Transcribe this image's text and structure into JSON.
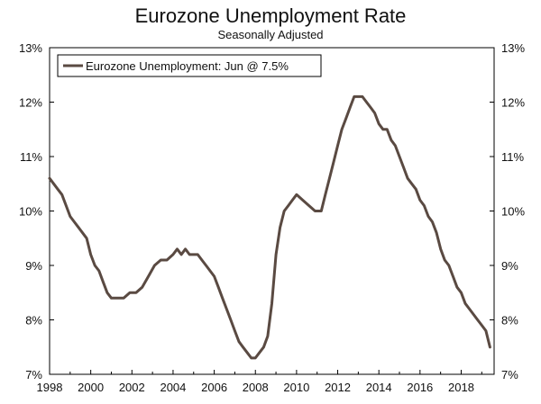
{
  "chart_data": {
    "type": "line",
    "title": "Eurozone Unemployment Rate",
    "subtitle": "Seasonally Adjusted",
    "xlabel": "",
    "ylabel": "",
    "x_ticks": [
      "1998",
      "2000",
      "2002",
      "2004",
      "2006",
      "2008",
      "2010",
      "2012",
      "2014",
      "2016",
      "2018"
    ],
    "y_ticks_left": [
      "13%",
      "12%",
      "11%",
      "10%",
      "9%",
      "8%",
      "7%"
    ],
    "y_ticks_right": [
      "13%",
      "12%",
      "11%",
      "10%",
      "9%",
      "8%",
      "7%"
    ],
    "xlim": [
      1998.0,
      2019.6
    ],
    "ylim": [
      7,
      13
    ],
    "grid": false,
    "legend_position": "top-left",
    "colors": {
      "line": "#5a4a42",
      "axis": "#000000"
    },
    "series": [
      {
        "name": "Eurozone Unemployment: Jun @ 7.5%",
        "x": [
          1998.0,
          1998.2,
          1998.4,
          1998.6,
          1998.8,
          1999.0,
          1999.2,
          1999.4,
          1999.6,
          1999.8,
          2000.0,
          2000.2,
          2000.4,
          2000.6,
          2000.8,
          2001.0,
          2001.3,
          2001.6,
          2001.9,
          2002.2,
          2002.5,
          2002.8,
          2003.1,
          2003.4,
          2003.7,
          2004.0,
          2004.2,
          2004.4,
          2004.6,
          2004.8,
          2005.0,
          2005.2,
          2005.4,
          2005.6,
          2005.8,
          2006.0,
          2006.2,
          2006.4,
          2006.6,
          2006.8,
          2007.0,
          2007.2,
          2007.4,
          2007.6,
          2007.8,
          2008.0,
          2008.2,
          2008.4,
          2008.6,
          2008.8,
          2009.0,
          2009.2,
          2009.4,
          2009.6,
          2009.8,
          2010.0,
          2010.3,
          2010.6,
          2010.9,
          2011.2,
          2011.4,
          2011.6,
          2011.8,
          2012.0,
          2012.2,
          2012.4,
          2012.6,
          2012.8,
          2013.0,
          2013.2,
          2013.4,
          2013.6,
          2013.8,
          2014.0,
          2014.2,
          2014.4,
          2014.6,
          2014.8,
          2015.0,
          2015.2,
          2015.4,
          2015.6,
          2015.8,
          2016.0,
          2016.2,
          2016.4,
          2016.6,
          2016.8,
          2017.0,
          2017.2,
          2017.4,
          2017.6,
          2017.8,
          2018.0,
          2018.2,
          2018.4,
          2018.6,
          2018.8,
          2019.0,
          2019.2,
          2019.4
        ],
        "y": [
          10.6,
          10.5,
          10.4,
          10.3,
          10.1,
          9.9,
          9.8,
          9.7,
          9.6,
          9.5,
          9.2,
          9.0,
          8.9,
          8.7,
          8.5,
          8.4,
          8.4,
          8.4,
          8.5,
          8.5,
          8.6,
          8.8,
          9.0,
          9.1,
          9.1,
          9.2,
          9.3,
          9.2,
          9.3,
          9.2,
          9.2,
          9.2,
          9.1,
          9.0,
          8.9,
          8.8,
          8.6,
          8.4,
          8.2,
          8.0,
          7.8,
          7.6,
          7.5,
          7.4,
          7.3,
          7.3,
          7.4,
          7.5,
          7.7,
          8.3,
          9.2,
          9.7,
          10.0,
          10.1,
          10.2,
          10.3,
          10.2,
          10.1,
          10.0,
          10.0,
          10.3,
          10.6,
          10.9,
          11.2,
          11.5,
          11.7,
          11.9,
          12.1,
          12.1,
          12.1,
          12.0,
          11.9,
          11.8,
          11.6,
          11.5,
          11.5,
          11.3,
          11.2,
          11.0,
          10.8,
          10.6,
          10.5,
          10.4,
          10.2,
          10.1,
          9.9,
          9.8,
          9.6,
          9.3,
          9.1,
          9.0,
          8.8,
          8.6,
          8.5,
          8.3,
          8.2,
          8.1,
          8.0,
          7.9,
          7.8,
          7.5
        ]
      }
    ]
  }
}
